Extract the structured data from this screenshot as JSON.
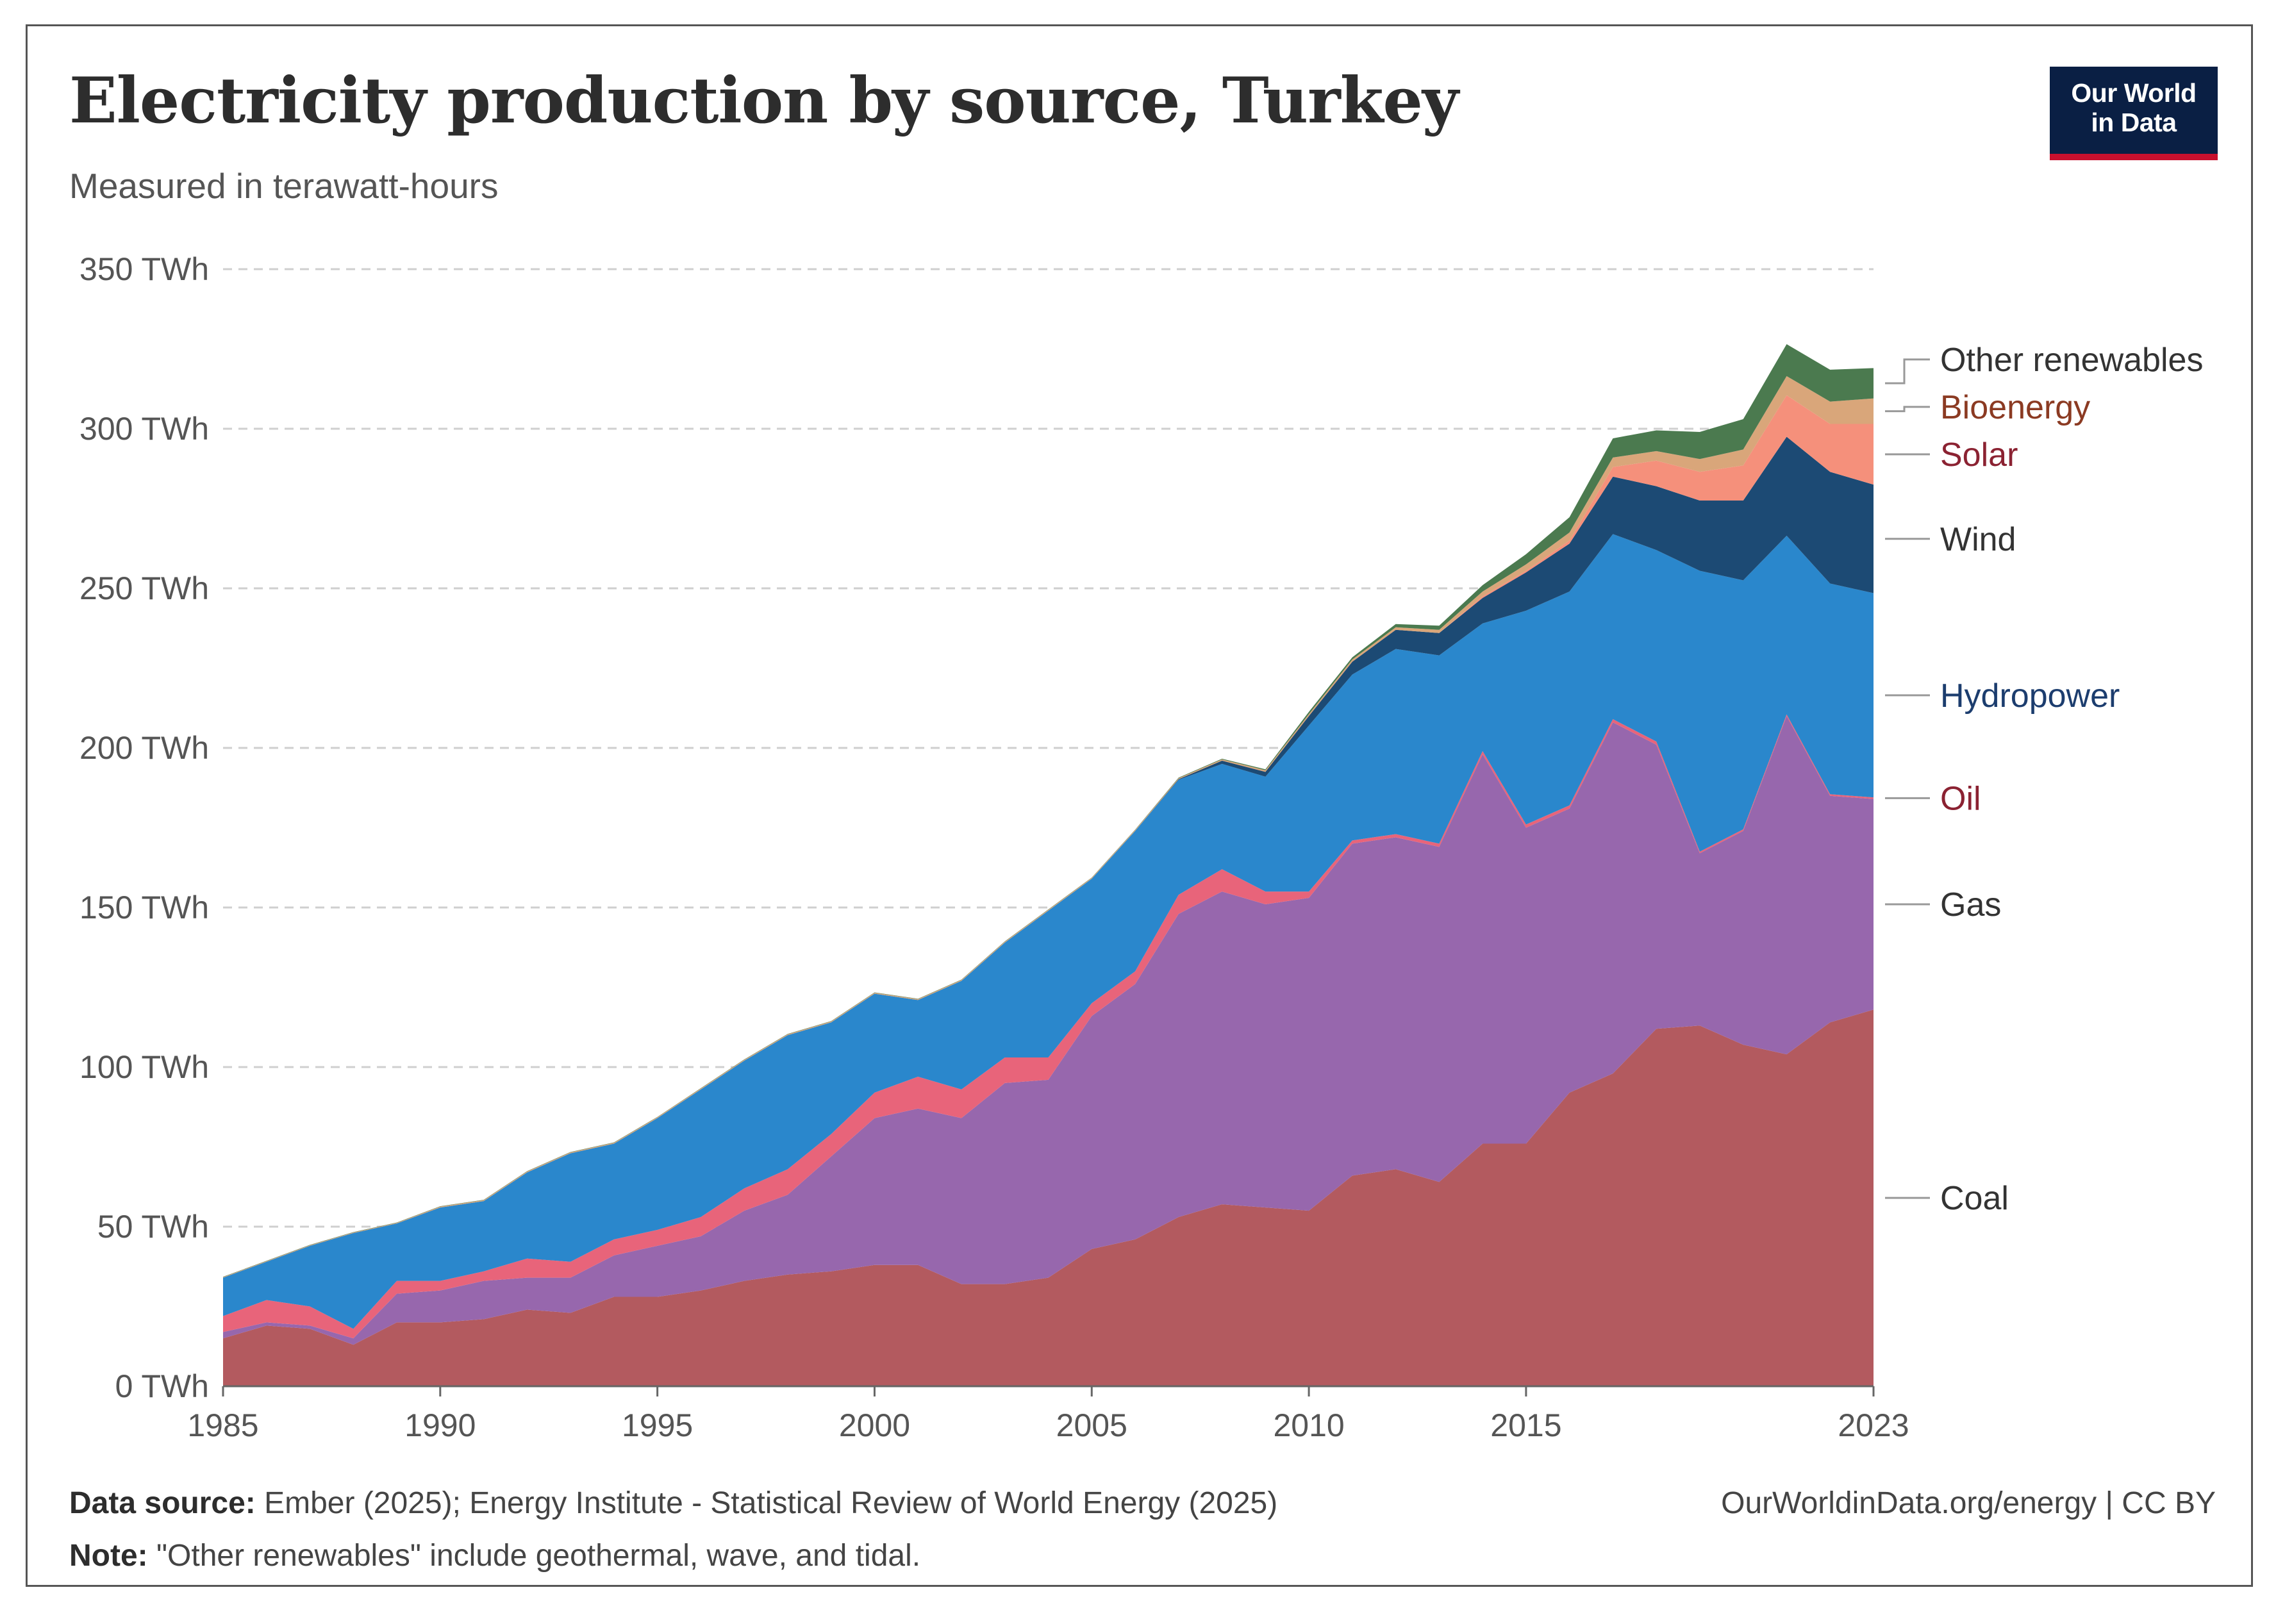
{
  "header": {
    "title": "Electricity production by source, Turkey",
    "subtitle": "Measured in terawatt-hours",
    "logo_line1": "Our World",
    "logo_line2": "in Data"
  },
  "footer": {
    "source_label": "Data source:",
    "source_text": "Ember (2025); Energy Institute - Statistical Review of World Energy (2025)",
    "note_label": "Note:",
    "note_text": "\"Other renewables\" include geothermal, wave, and tidal.",
    "credit": "OurWorldinData.org/energy | CC BY"
  },
  "chart_data": {
    "type": "area",
    "stacked": true,
    "title": "Electricity production by source, Turkey",
    "subtitle": "Measured in terawatt-hours",
    "xlabel": "",
    "ylabel": "",
    "unit": "TWh",
    "x": [
      1985,
      1986,
      1987,
      1988,
      1989,
      1990,
      1991,
      1992,
      1993,
      1994,
      1995,
      1996,
      1997,
      1998,
      1999,
      2000,
      2001,
      2002,
      2003,
      2004,
      2005,
      2006,
      2007,
      2008,
      2009,
      2010,
      2011,
      2012,
      2013,
      2014,
      2015,
      2016,
      2017,
      2018,
      2019,
      2020,
      2021,
      2022,
      2023
    ],
    "xlim": [
      1985,
      2023
    ],
    "x_ticks": [
      {
        "value": 1985,
        "label": "1985"
      },
      {
        "value": 1990,
        "label": "1990"
      },
      {
        "value": 1995,
        "label": "1995"
      },
      {
        "value": 2000,
        "label": "2000"
      },
      {
        "value": 2005,
        "label": "2005"
      },
      {
        "value": 2010,
        "label": "2010"
      },
      {
        "value": 2015,
        "label": "2015"
      },
      {
        "value": 2023,
        "label": "2023"
      }
    ],
    "ylim": [
      0,
      350
    ],
    "y_ticks": [
      {
        "value": 0,
        "label": "0 TWh"
      },
      {
        "value": 50,
        "label": "50 TWh"
      },
      {
        "value": 100,
        "label": "100 TWh"
      },
      {
        "value": 150,
        "label": "150 TWh"
      },
      {
        "value": 200,
        "label": "200 TWh"
      },
      {
        "value": 250,
        "label": "250 TWh"
      },
      {
        "value": 300,
        "label": "300 TWh"
      },
      {
        "value": 350,
        "label": "350 TWh"
      }
    ],
    "grid": "horizontal dashed",
    "legend": "right, inline labels",
    "series": [
      {
        "name": "Coal",
        "color": "#b35a5f",
        "label_color": "#333333",
        "values": [
          15,
          19,
          18,
          13,
          20,
          20,
          21,
          24,
          23,
          28,
          28,
          30,
          33,
          35,
          36,
          38,
          38,
          32,
          32,
          34,
          43,
          46,
          53,
          57,
          56,
          55,
          66,
          68,
          64,
          76,
          76,
          92,
          98,
          112,
          113,
          107,
          104,
          114,
          118
        ]
      },
      {
        "name": "Gas",
        "color": "#9767ad",
        "label_color": "#333333",
        "values": [
          2,
          1,
          1,
          2,
          9,
          10,
          12,
          10,
          11,
          13,
          16,
          17,
          22,
          25,
          36,
          46,
          49,
          52,
          63,
          62,
          73,
          80,
          95,
          98,
          95,
          98,
          104,
          104,
          105,
          122,
          99,
          89,
          110,
          89,
          54,
          67,
          106,
          71,
          66
        ]
      },
      {
        "name": "Oil",
        "color": "#e8647a",
        "label_color": "#8b2232",
        "values": [
          5,
          7,
          6,
          3,
          4,
          3,
          3,
          6,
          5,
          5,
          5,
          6,
          7,
          8,
          7,
          8,
          10,
          9,
          8,
          7,
          4,
          4,
          6,
          7,
          4,
          2,
          1,
          1,
          1,
          1,
          1,
          1,
          1,
          1,
          0.5,
          0.5,
          0.5,
          0.5,
          0.5
        ]
      },
      {
        "name": "Hydropower",
        "color": "#2a87cc",
        "label_color": "#1c3d6e",
        "values": [
          12,
          12,
          19,
          30,
          18,
          23,
          22,
          27,
          34,
          30,
          35,
          40,
          40,
          42,
          35,
          31,
          24,
          34,
          36,
          46,
          39,
          44,
          36,
          33,
          36,
          52,
          52,
          58,
          59,
          40,
          67,
          67,
          58,
          60,
          88,
          78,
          56,
          66,
          64
        ]
      },
      {
        "name": "Wind",
        "color": "#1c4a74",
        "label_color": "#333333",
        "values": [
          0,
          0,
          0,
          0,
          0,
          0,
          0,
          0,
          0,
          0,
          0,
          0,
          0,
          0,
          0,
          0,
          0,
          0,
          0,
          0,
          0,
          0,
          0.2,
          1,
          1.5,
          3,
          4,
          6,
          7,
          8,
          12,
          15,
          18,
          20,
          22,
          25,
          31,
          35,
          34
        ]
      },
      {
        "name": "Solar",
        "color": "#f5907b",
        "label_color": "#8b2232",
        "values": [
          0,
          0,
          0,
          0,
          0,
          0,
          0,
          0,
          0,
          0,
          0,
          0,
          0,
          0,
          0,
          0,
          0,
          0,
          0,
          0,
          0,
          0,
          0,
          0,
          0,
          0,
          0,
          0,
          0,
          0.5,
          0.5,
          1,
          3,
          8,
          9,
          11,
          13,
          15,
          19
        ]
      },
      {
        "name": "Bioenergy",
        "color": "#d9a67a",
        "label_color": "#8b3a22",
        "values": [
          0.2,
          0.2,
          0.2,
          0.2,
          0.2,
          0.3,
          0.3,
          0.3,
          0.3,
          0.3,
          0.3,
          0.3,
          0.3,
          0.3,
          0.3,
          0.3,
          0.3,
          0.3,
          0.3,
          0.3,
          0.3,
          0.3,
          0.3,
          0.4,
          0.5,
          0.6,
          0.7,
          0.8,
          1,
          1.5,
          2,
          2.5,
          3,
          3,
          4,
          5,
          6,
          7,
          8
        ]
      },
      {
        "name": "Other renewables",
        "color": "#4b7a4f",
        "label_color": "#333333",
        "values": [
          0.1,
          0.1,
          0.1,
          0.1,
          0.1,
          0.1,
          0.1,
          0.1,
          0.1,
          0.1,
          0.1,
          0.1,
          0.1,
          0.1,
          0.1,
          0.1,
          0.1,
          0.1,
          0.1,
          0.1,
          0.1,
          0.1,
          0.2,
          0.2,
          0.3,
          0.7,
          0.7,
          1,
          1.3,
          2,
          3.2,
          4.8,
          6,
          6.5,
          8.5,
          9.5,
          10,
          10,
          9.5
        ]
      }
    ]
  }
}
